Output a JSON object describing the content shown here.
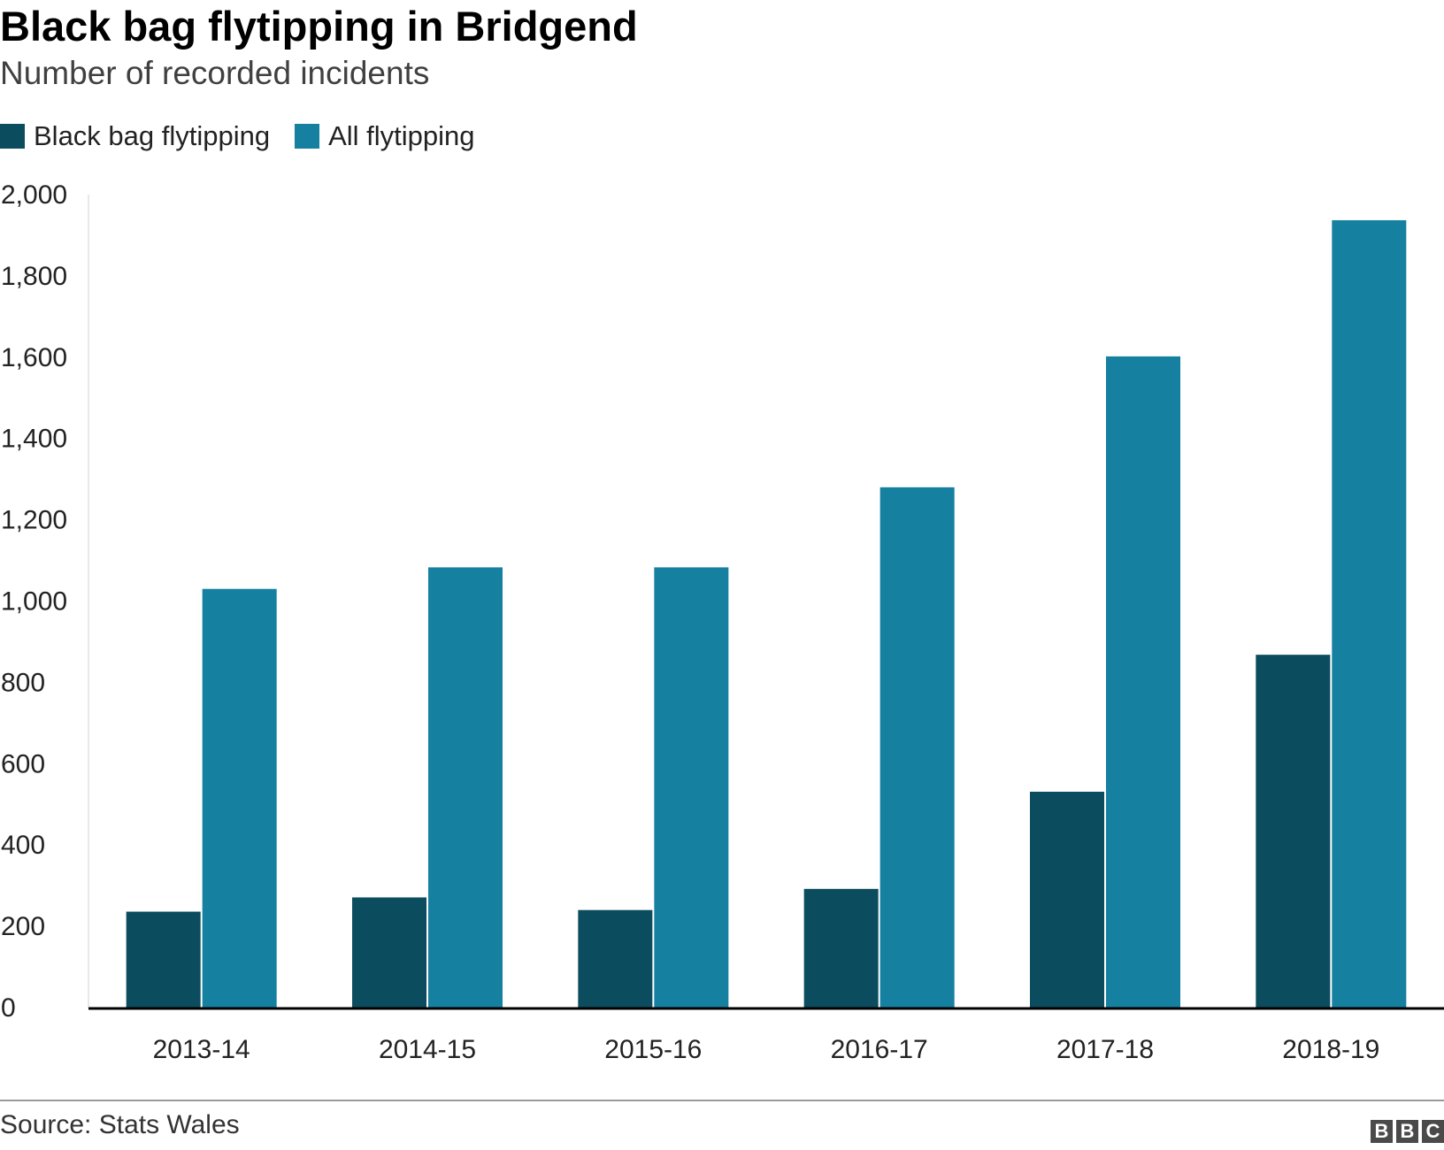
{
  "colors": {
    "black_bag": "#0b4d5f",
    "all": "#1580a0",
    "axis": "#000000"
  },
  "source": "Source: Stats Wales",
  "logo": [
    "B",
    "B",
    "C"
  ],
  "chart_data": {
    "type": "bar",
    "title": "Black bag flytipping in Bridgend",
    "subtitle": "Number of recorded incidents",
    "categories": [
      "2013-14",
      "2014-15",
      "2015-16",
      "2016-17",
      "2017-18",
      "2018-19"
    ],
    "series": [
      {
        "name": "Black bag flytipping",
        "values": [
          236,
          271,
          240,
          292,
          531,
          868
        ],
        "color": "#0b4d5f"
      },
      {
        "name": "All flytipping",
        "values": [
          1030,
          1083,
          1083,
          1280,
          1602,
          1937
        ],
        "color": "#1580a0"
      }
    ],
    "ylim": [
      0,
      2000
    ],
    "yticks": [
      0,
      200,
      400,
      600,
      800,
      1000,
      1200,
      1400,
      1600,
      1800,
      2000
    ],
    "ytick_labels": [
      "0",
      "200",
      "400",
      "600",
      "800",
      "1,000",
      "1,200",
      "1,400",
      "1,600",
      "1,800",
      "2,000"
    ],
    "xlabel": "",
    "ylabel": "",
    "legend": "top-left",
    "grid": false
  }
}
